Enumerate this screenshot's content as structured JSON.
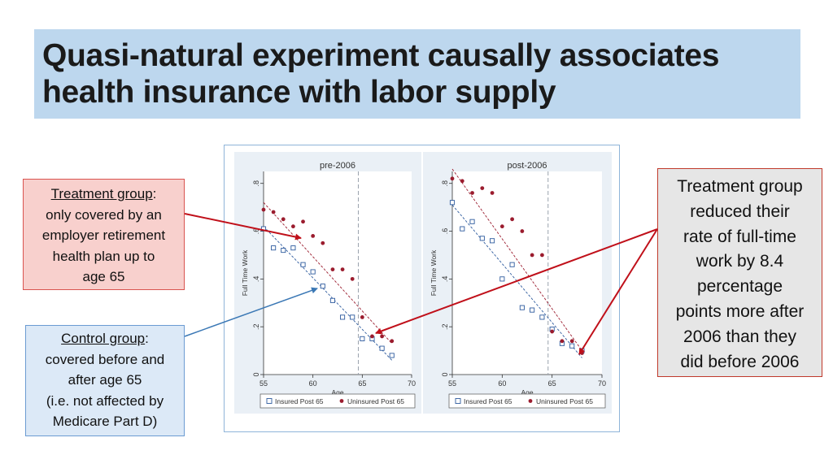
{
  "slide": {
    "title_line1": "Quasi-natural experiment causally associates",
    "title_line2": "health insurance with labor supply"
  },
  "callouts": {
    "treatment": {
      "heading": "Treatment group",
      "colon": ":",
      "lines": [
        "only covered by an",
        "employer retirement",
        "health plan up to",
        "age 65"
      ]
    },
    "control": {
      "heading": "Control group",
      "colon": ":",
      "lines": [
        "covered before and",
        "after age 65",
        "(i.e. not affected by",
        "Medicare Part D)"
      ]
    },
    "result": {
      "lines": [
        "Treatment group",
        "reduced their",
        "rate of full-time",
        "work by 8.4",
        "percentage",
        "points more after",
        "2006 than they",
        "did before 2006"
      ]
    }
  },
  "colors": {
    "insured": "#2e5b9e",
    "uninsured": "#9b1c2e",
    "arrow_red": "#c0101a",
    "arrow_blue": "#3b78b5",
    "panel_bg": "#eaf0f6",
    "cutoff_line": "#9aa3ad"
  },
  "chart_data": [
    {
      "type": "scatter",
      "title": "pre-2006",
      "xlabel": "Age",
      "ylabel": "Full Time Work",
      "xlim": [
        55,
        70
      ],
      "ylim": [
        0,
        0.85
      ],
      "xticks": [
        55,
        60,
        65,
        70
      ],
      "yticks": [
        0,
        0.2,
        0.4,
        0.6,
        0.8
      ],
      "ytick_labels": [
        "0",
        ".2",
        ".4",
        ".6",
        ".8"
      ],
      "cutoff_x": 64.6,
      "series": [
        {
          "name": "Insured Post 65",
          "marker": "hollow-square",
          "color_key": "insured",
          "x": [
            55,
            56,
            57,
            58,
            59,
            60,
            61,
            62,
            63,
            64,
            65,
            66,
            67,
            68
          ],
          "y": [
            0.61,
            0.53,
            0.52,
            0.53,
            0.46,
            0.43,
            0.37,
            0.31,
            0.24,
            0.24,
            0.15,
            0.15,
            0.11,
            0.08
          ],
          "fit": [
            [
              55,
              0.62
            ],
            [
              68,
              0.06
            ]
          ]
        },
        {
          "name": "Uninsured Post 65",
          "marker": "filled-dot",
          "color_key": "uninsured",
          "x": [
            55,
            56,
            57,
            58,
            59,
            60,
            61,
            62,
            63,
            64,
            65,
            66,
            67,
            68
          ],
          "y": [
            0.69,
            0.68,
            0.65,
            0.62,
            0.64,
            0.58,
            0.55,
            0.44,
            0.44,
            0.4,
            0.24,
            0.16,
            0.16,
            0.14
          ],
          "fit": [
            [
              55,
              0.72
            ],
            [
              68,
              0.13
            ]
          ]
        }
      ],
      "legend": {
        "position": "bottom",
        "entries": [
          "Insured Post 65",
          "Uninsured Post 65"
        ]
      }
    },
    {
      "type": "scatter",
      "title": "post-2006",
      "xlabel": "Age",
      "ylabel": "Full Time Work",
      "xlim": [
        55,
        70
      ],
      "ylim": [
        0,
        0.85
      ],
      "xticks": [
        55,
        60,
        65,
        70
      ],
      "yticks": [
        0,
        0.2,
        0.4,
        0.6,
        0.8
      ],
      "ytick_labels": [
        "0",
        ".2",
        ".4",
        ".6",
        ".8"
      ],
      "cutoff_x": 64.6,
      "series": [
        {
          "name": "Insured Post 65",
          "marker": "hollow-square",
          "color_key": "insured",
          "x": [
            55,
            56,
            57,
            58,
            59,
            60,
            61,
            62,
            63,
            64,
            65,
            66,
            67,
            68
          ],
          "y": [
            0.72,
            0.61,
            0.64,
            0.57,
            0.56,
            0.4,
            0.46,
            0.28,
            0.27,
            0.24,
            0.19,
            0.13,
            0.12,
            0.1
          ],
          "fit": [
            [
              55,
              0.71
            ],
            [
              68,
              0.07
            ]
          ]
        },
        {
          "name": "Uninsured Post 65",
          "marker": "filled-dot",
          "color_key": "uninsured",
          "x": [
            55,
            56,
            57,
            58,
            59,
            60,
            61,
            62,
            63,
            64,
            65,
            66,
            67,
            68
          ],
          "y": [
            0.82,
            0.81,
            0.76,
            0.78,
            0.76,
            0.62,
            0.65,
            0.6,
            0.5,
            0.5,
            0.18,
            0.14,
            0.14,
            0.09
          ],
          "fit": [
            [
              55,
              0.86
            ],
            [
              68,
              0.1
            ]
          ]
        }
      ],
      "legend": {
        "position": "bottom",
        "entries": [
          "Insured Post 65",
          "Uninsured Post 65"
        ]
      }
    }
  ]
}
